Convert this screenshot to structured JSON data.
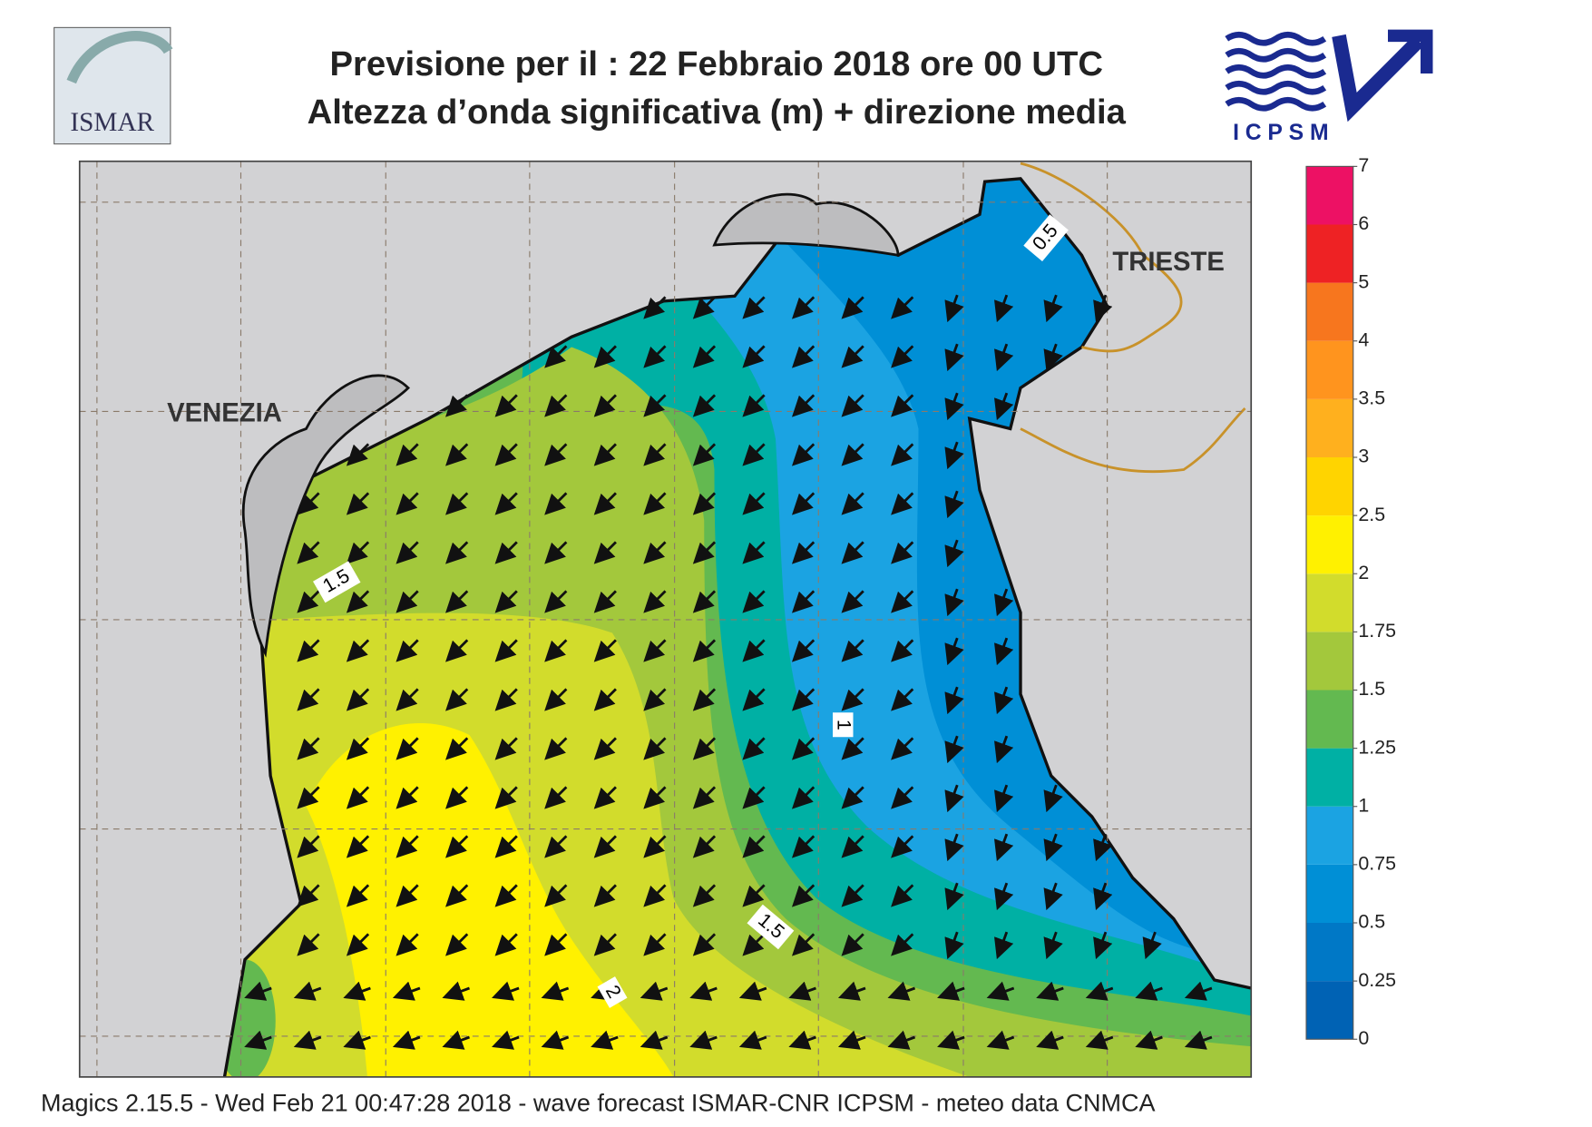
{
  "header": {
    "title_line1": "Previsione per il  :  22  Febbraio 2018   ore 00 UTC",
    "title_line2": "Altezza d’onda significativa (m) + direzione media",
    "logo_left": "ISMAR",
    "logo_right": "ICPSM"
  },
  "map": {
    "places": [
      "VENEZIA",
      "TRIESTE"
    ],
    "contour_labels": [
      0.5,
      1,
      1.5,
      1.5,
      2
    ],
    "colorbar": {
      "levels": [
        0,
        0.25,
        0.5,
        0.75,
        1,
        1.25,
        1.5,
        1.75,
        2,
        2.5,
        3,
        3.5,
        4,
        5,
        6,
        7
      ],
      "colors": [
        "#0062b4",
        "#0078c6",
        "#008fd6",
        "#1ba3e2",
        "#00b0a4",
        "#63b950",
        "#a3c83c",
        "#d2dc2c",
        "#fff100",
        "#ffd400",
        "#ffb01e",
        "#ff941e",
        "#f7761e",
        "#ee2224",
        "#ed1164"
      ]
    }
  },
  "footer": "Magics 2.15.5 - Wed Feb 21 00:47:28 2018 - wave forecast  ISMAR-CNR  ICPSM - meteo data   CNMCA"
}
